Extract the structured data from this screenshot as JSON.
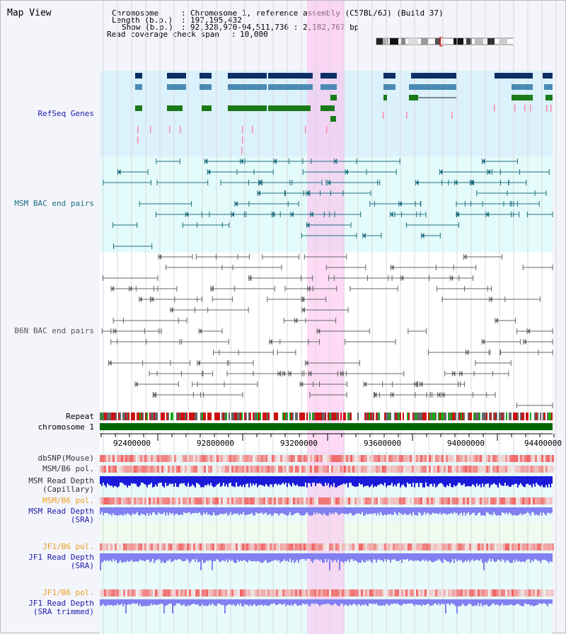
{
  "title": "Map View",
  "info": {
    "chromosome_key": "Chromosome",
    "chromosome_val": "Chromosome 1, reference assembly (C57BL/6J) (Build 37)",
    "length_key": "Length (b.p.)",
    "length_val": "197,195,432",
    "show_key": "Show (b.p.)",
    "show_val": "92,328,970-94,511,736 : 2,182,767 bp",
    "coverage_key": "Read coverage check span",
    "coverage_val": "10,000"
  },
  "tracks": {
    "refseq": "RefSeq Genes",
    "msm_bac": "MSM BAC end pairs",
    "b6n_bac": "B6N BAC end pairs",
    "repeat": "Repeat",
    "chromosome": "chromosome 1",
    "dbsnp": "dbSNP(Mouse)",
    "msm_b6_pol_1": "MSM/B6 pol.",
    "msm_depth_cap_1": "MSM Read Depth",
    "msm_depth_cap_2": "(Capillary)",
    "msm_b6_pol_2": "MSM/B6 pol.",
    "msm_depth_sra_1": "MSM Read Depth",
    "msm_depth_sra_2": "(SRA)",
    "jf1_pol_1": "JF1/B6 pol.",
    "jf1_depth_1": "JF1 Read Depth",
    "jf1_depth_2": "(SRA)",
    "jf1_pol_2": "JF1/B6 pol.",
    "jf1_trim_1": "JF1 Read Depth",
    "jf1_trim_2": "(SRA trimmed)"
  },
  "axis_ticks": [
    "92400000",
    "92800000",
    "93200000",
    "93600000",
    "94000000",
    "94400000"
  ],
  "colors": {
    "refseq_dark": "#0d2f66",
    "refseq_mid": "#4a8ab4",
    "refseq_green": "#1a7a1a",
    "refseq_pink": "#ff88aa",
    "msm_line": "#1e6f7f",
    "b6n_line": "#666666",
    "highlight": "#ffbbee",
    "chromosome": "#006600",
    "depth_blue": "#1a1ad8",
    "depth_light": "#8080f0",
    "label_blue": "#1a1aaa",
    "label_orange": "#e8a020"
  }
}
